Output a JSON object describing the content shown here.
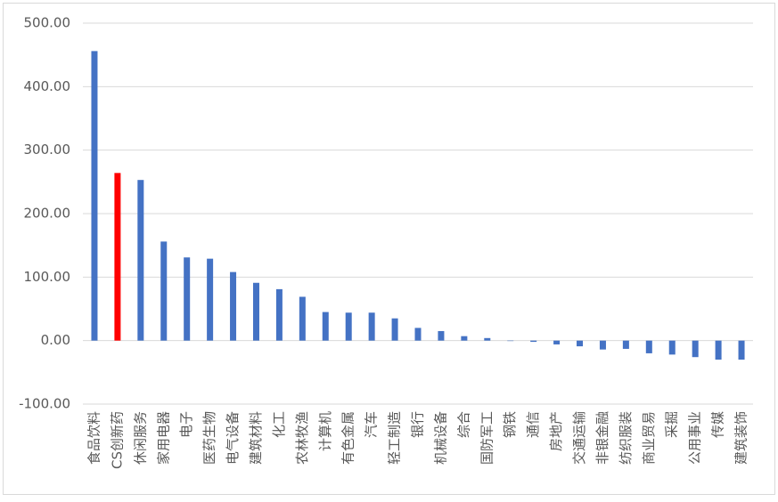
{
  "chart_data": {
    "type": "bar",
    "categories": [
      "食品饮料",
      "CS创新药",
      "休闲服务",
      "家用电器",
      "电子",
      "医药生物",
      "电气设备",
      "建筑材料",
      "化工",
      "农林牧渔",
      "计算机",
      "有色金属",
      "汽车",
      "轻工制造",
      "银行",
      "机械设备",
      "综合",
      "国防军工",
      "钢铁",
      "通信",
      "房地产",
      "交通运输",
      "非银金融",
      "纺织服装",
      "商业贸易",
      "采掘",
      "公用事业",
      "传媒",
      "建筑装饰"
    ],
    "values": [
      456,
      264,
      253,
      156,
      131,
      129,
      108,
      91,
      81,
      69,
      45,
      44,
      44,
      35,
      20,
      15,
      7,
      4,
      -0.5,
      -2,
      -6,
      -9,
      -14,
      -13,
      -20,
      -22,
      -26,
      -30,
      -30
    ],
    "colors": [
      "#4472c4",
      "#ff0000",
      "#4472c4",
      "#4472c4",
      "#4472c4",
      "#4472c4",
      "#4472c4",
      "#4472c4",
      "#4472c4",
      "#4472c4",
      "#4472c4",
      "#4472c4",
      "#4472c4",
      "#4472c4",
      "#4472c4",
      "#4472c4",
      "#4472c4",
      "#4472c4",
      "#4472c4",
      "#4472c4",
      "#4472c4",
      "#4472c4",
      "#4472c4",
      "#4472c4",
      "#4472c4",
      "#4472c4",
      "#4472c4",
      "#4472c4",
      "#4472c4"
    ],
    "ylim": [
      -100,
      500
    ],
    "yticks": [
      {
        "value": -100,
        "label": "-100.00"
      },
      {
        "value": 0,
        "label": "0.00"
      },
      {
        "value": 100,
        "label": "100.00"
      },
      {
        "value": 200,
        "label": "200.00"
      },
      {
        "value": 300,
        "label": "300.00"
      },
      {
        "value": 400,
        "label": "400.00"
      },
      {
        "value": 500,
        "label": "500.00"
      }
    ],
    "grid": true
  }
}
